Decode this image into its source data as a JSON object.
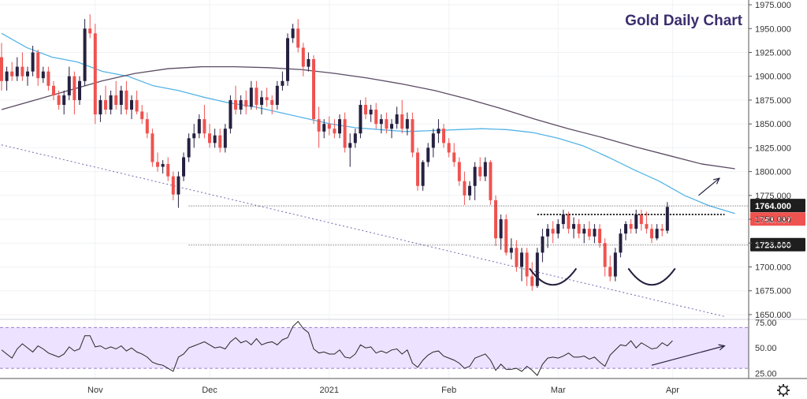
{
  "chart_data": [
    {
      "type": "candlestick",
      "title": "Gold Daily Chart",
      "y_axis": {
        "position": "right",
        "ylim": [
          1645,
          1980
        ],
        "ticks": [
          "1975.000",
          "1950.000",
          "1925.000",
          "1900.000",
          "1875.000",
          "1850.000",
          "1825.000",
          "1800.000",
          "1775.000",
          "1750.000",
          "1725.000",
          "1700.000",
          "1675.000",
          "1650.000"
        ]
      },
      "x_axis": {
        "ticks": [
          {
            "label": "Nov",
            "day": 18
          },
          {
            "label": "Dec",
            "day": 40
          },
          {
            "label": "2021",
            "day": 63
          },
          {
            "label": "Feb",
            "day": 86
          },
          {
            "label": "Mar",
            "day": 107
          },
          {
            "label": "Apr",
            "day": 129
          }
        ]
      },
      "candles": [
        [
          1920,
          1935,
          1885,
          1895
        ],
        [
          1895,
          1910,
          1885,
          1905
        ],
        [
          1905,
          1915,
          1895,
          1900
        ],
        [
          1900,
          1920,
          1895,
          1910
        ],
        [
          1910,
          1925,
          1895,
          1900
        ],
        [
          1900,
          1910,
          1890,
          1905
        ],
        [
          1905,
          1932,
          1900,
          1925
        ],
        [
          1925,
          1928,
          1890,
          1898
        ],
        [
          1898,
          1910,
          1893,
          1905
        ],
        [
          1905,
          1910,
          1885,
          1890
        ],
        [
          1890,
          1895,
          1875,
          1880
        ],
        [
          1880,
          1885,
          1865,
          1870
        ],
        [
          1870,
          1885,
          1860,
          1880
        ],
        [
          1880,
          1910,
          1875,
          1900
        ],
        [
          1900,
          1905,
          1860,
          1875
        ],
        [
          1875,
          1900,
          1870,
          1895
        ],
        [
          1895,
          1960,
          1890,
          1950
        ],
        [
          1950,
          1965,
          1940,
          1945
        ],
        [
          1945,
          1955,
          1850,
          1860
        ],
        [
          1860,
          1880,
          1852,
          1875
        ],
        [
          1875,
          1890,
          1860,
          1865
        ],
        [
          1865,
          1885,
          1860,
          1880
        ],
        [
          1880,
          1895,
          1865,
          1870
        ],
        [
          1870,
          1890,
          1860,
          1885
        ],
        [
          1885,
          1895,
          1860,
          1865
        ],
        [
          1865,
          1880,
          1855,
          1875
        ],
        [
          1875,
          1885,
          1860,
          1863
        ],
        [
          1863,
          1870,
          1850,
          1855
        ],
        [
          1855,
          1862,
          1835,
          1840
        ],
        [
          1840,
          1845,
          1805,
          1810
        ],
        [
          1810,
          1820,
          1800,
          1805
        ],
        [
          1805,
          1812,
          1798,
          1808
        ],
        [
          1808,
          1815,
          1790,
          1795
        ],
        [
          1795,
          1800,
          1770,
          1776
        ],
        [
          1776,
          1800,
          1762,
          1795
        ],
        [
          1795,
          1820,
          1790,
          1815
        ],
        [
          1815,
          1840,
          1810,
          1835
        ],
        [
          1835,
          1850,
          1825,
          1840
        ],
        [
          1840,
          1860,
          1835,
          1855
        ],
        [
          1855,
          1870,
          1835,
          1840
        ],
        [
          1840,
          1850,
          1825,
          1830
        ],
        [
          1830,
          1845,
          1825,
          1838
        ],
        [
          1838,
          1845,
          1820,
          1825
        ],
        [
          1825,
          1850,
          1820,
          1845
        ],
        [
          1845,
          1880,
          1840,
          1875
        ],
        [
          1875,
          1890,
          1860,
          1865
        ],
        [
          1865,
          1880,
          1860,
          1875
        ],
        [
          1875,
          1885,
          1860,
          1868
        ],
        [
          1868,
          1895,
          1865,
          1888
        ],
        [
          1888,
          1895,
          1865,
          1870
        ],
        [
          1870,
          1885,
          1860,
          1878
        ],
        [
          1878,
          1888,
          1868,
          1875
        ],
        [
          1875,
          1880,
          1860,
          1870
        ],
        [
          1870,
          1895,
          1865,
          1890
        ],
        [
          1890,
          1905,
          1885,
          1895
        ],
        [
          1895,
          1945,
          1890,
          1940
        ],
        [
          1940,
          1955,
          1935,
          1950
        ],
        [
          1950,
          1960,
          1925,
          1930
        ],
        [
          1930,
          1935,
          1900,
          1910
        ],
        [
          1910,
          1925,
          1905,
          1918
        ],
        [
          1918,
          1922,
          1850,
          1855
        ],
        [
          1855,
          1868,
          1825,
          1842
        ],
        [
          1842,
          1855,
          1835,
          1850
        ],
        [
          1850,
          1858,
          1838,
          1845
        ],
        [
          1845,
          1855,
          1835,
          1840
        ],
        [
          1840,
          1860,
          1835,
          1855
        ],
        [
          1855,
          1862,
          1820,
          1825
        ],
        [
          1825,
          1840,
          1805,
          1830
        ],
        [
          1830,
          1845,
          1825,
          1840
        ],
        [
          1840,
          1875,
          1835,
          1870
        ],
        [
          1870,
          1878,
          1855,
          1860
        ],
        [
          1860,
          1870,
          1852,
          1865
        ],
        [
          1865,
          1872,
          1845,
          1850
        ],
        [
          1850,
          1860,
          1840,
          1855
        ],
        [
          1855,
          1862,
          1840,
          1845
        ],
        [
          1845,
          1855,
          1835,
          1850
        ],
        [
          1850,
          1868,
          1845,
          1860
        ],
        [
          1860,
          1875,
          1840,
          1845
        ],
        [
          1845,
          1862,
          1838,
          1855
        ],
        [
          1855,
          1862,
          1815,
          1820
        ],
        [
          1820,
          1825,
          1780,
          1785
        ],
        [
          1785,
          1812,
          1780,
          1810
        ],
        [
          1810,
          1830,
          1805,
          1825
        ],
        [
          1825,
          1845,
          1815,
          1840
        ],
        [
          1840,
          1855,
          1830,
          1845
        ],
        [
          1845,
          1850,
          1825,
          1830
        ],
        [
          1830,
          1835,
          1815,
          1820
        ],
        [
          1820,
          1830,
          1805,
          1810
        ],
        [
          1810,
          1815,
          1785,
          1790
        ],
        [
          1790,
          1800,
          1765,
          1775
        ],
        [
          1775,
          1790,
          1770,
          1785
        ],
        [
          1785,
          1810,
          1770,
          1805
        ],
        [
          1805,
          1815,
          1790,
          1795
        ],
        [
          1795,
          1815,
          1790,
          1810
        ],
        [
          1810,
          1812,
          1765,
          1770
        ],
        [
          1770,
          1775,
          1722,
          1730
        ],
        [
          1730,
          1755,
          1718,
          1750
        ],
        [
          1750,
          1755,
          1712,
          1715
        ],
        [
          1715,
          1730,
          1708,
          1720
        ],
        [
          1720,
          1728,
          1695,
          1700
        ],
        [
          1700,
          1720,
          1685,
          1715
        ],
        [
          1715,
          1720,
          1680,
          1690
        ],
        [
          1690,
          1705,
          1675,
          1680
        ],
        [
          1680,
          1720,
          1678,
          1715
        ],
        [
          1715,
          1740,
          1705,
          1732
        ],
        [
          1732,
          1745,
          1720,
          1740
        ],
        [
          1740,
          1748,
          1725,
          1735
        ],
        [
          1735,
          1750,
          1730,
          1745
        ],
        [
          1745,
          1760,
          1740,
          1755
        ],
        [
          1755,
          1758,
          1735,
          1740
        ],
        [
          1740,
          1752,
          1730,
          1745
        ],
        [
          1745,
          1750,
          1730,
          1735
        ],
        [
          1735,
          1745,
          1725,
          1740
        ],
        [
          1740,
          1748,
          1728,
          1732
        ],
        [
          1732,
          1745,
          1725,
          1740
        ],
        [
          1740,
          1745,
          1720,
          1725
        ],
        [
          1725,
          1730,
          1690,
          1700
        ],
        [
          1700,
          1712,
          1685,
          1690
        ],
        [
          1690,
          1720,
          1685,
          1715
        ],
        [
          1715,
          1740,
          1710,
          1735
        ],
        [
          1735,
          1748,
          1728,
          1745
        ],
        [
          1745,
          1750,
          1735,
          1740
        ],
        [
          1740,
          1760,
          1735,
          1755
        ],
        [
          1755,
          1760,
          1738,
          1745
        ],
        [
          1745,
          1758,
          1735,
          1740
        ],
        [
          1740,
          1745,
          1725,
          1730
        ],
        [
          1730,
          1745,
          1728,
          1740
        ],
        [
          1740,
          1745,
          1732,
          1738
        ],
        [
          1738,
          1768,
          1735,
          1763
        ]
      ],
      "series": [
        {
          "type": "line",
          "color": "#55b4e6",
          "start_day": 0,
          "values": [
            1945,
            1930,
            1920,
            1915,
            1905,
            1900,
            1890,
            1885,
            1878,
            1872,
            1868,
            1862,
            1856,
            1850,
            1846,
            1844,
            1842,
            1843,
            1844,
            1845,
            1844,
            1841,
            1835,
            1827,
            1815,
            1802,
            1790,
            1775,
            1764,
            1756
          ]
        },
        {
          "type": "line",
          "color": "#5b4b64",
          "start_day": 0,
          "values": [
            1865,
            1875,
            1885,
            1895,
            1903,
            1908,
            1910,
            1910,
            1909,
            1907,
            1903,
            1898,
            1892,
            1885,
            1876,
            1866,
            1855,
            1845,
            1836,
            1826,
            1817,
            1808,
            1803
          ]
        },
        {
          "type": "line",
          "color": "#7267b0",
          "style": "dotted",
          "x_start_day": 0,
          "y_start": 1828,
          "x_end_day": 139,
          "y_end": 1648
        }
      ],
      "levels": [
        {
          "value": 1764.0,
          "label": "1764.000",
          "tag_bg": "#1e1e1e",
          "tag_fg": "#ffffff",
          "line": "dotted"
        },
        {
          "value": 1763.037,
          "label": "1763.037",
          "tag_bg": "#ef5350",
          "tag_fg": "#ffffff",
          "line": "none"
        },
        {
          "value": 1755,
          "label": "",
          "line": "dense-dotted"
        },
        {
          "value": 1723.0,
          "label": "1723.000",
          "tag_bg": "#1e1e1e",
          "tag_fg": "#ffffff",
          "line": "dotted"
        }
      ],
      "annotations": [
        {
          "type": "arc",
          "center_day": 106,
          "center_value": 1693,
          "half_width_days": 4.5,
          "depth": 22
        },
        {
          "type": "arc",
          "center_day": 125,
          "center_value": 1693,
          "half_width_days": 4.5,
          "depth": 22
        },
        {
          "type": "arrow",
          "from_day": 134,
          "from_value": 1775,
          "to_day": 138,
          "to_value": 1793
        }
      ],
      "colors": {
        "up": "#262040",
        "down": "#ef5350"
      }
    },
    {
      "type": "line",
      "title": "",
      "name": "rsi",
      "y_axis": {
        "position": "right",
        "ylim": [
          20,
          78
        ],
        "ticks": [
          "75.00",
          "50.00",
          "25.00"
        ]
      },
      "band": {
        "upper": 70,
        "lower": 30,
        "fill": "#ede2ff"
      },
      "values": [
        48,
        44,
        40,
        49,
        54,
        50,
        46,
        52,
        49,
        45,
        43,
        41,
        44,
        51,
        47,
        49,
        62,
        62,
        51,
        52,
        49,
        51,
        49,
        52,
        47,
        50,
        46,
        44,
        41,
        36,
        34,
        33,
        30,
        27,
        41,
        44,
        50,
        52,
        54,
        56,
        53,
        50,
        51,
        49,
        56,
        60,
        55,
        57,
        53,
        59,
        53,
        55,
        56,
        53,
        58,
        60,
        71,
        76,
        69,
        65,
        49,
        45,
        46,
        44,
        44,
        48,
        41,
        40,
        44,
        53,
        50,
        51,
        45,
        47,
        45,
        48,
        49,
        44,
        48,
        35,
        31,
        38,
        43,
        46,
        47,
        42,
        40,
        38,
        35,
        30,
        32,
        40,
        42,
        44,
        38,
        28,
        34,
        29,
        29,
        30,
        27,
        32,
        28,
        23,
        34,
        40,
        41,
        40,
        42,
        45,
        41,
        41,
        42,
        39,
        41,
        36,
        32,
        43,
        48,
        53,
        52,
        57,
        50,
        55,
        52,
        49,
        50,
        55,
        52,
        57
      ],
      "line_color": "#262626",
      "annotations": [
        {
          "type": "arrow",
          "from_day": 125,
          "from_value": 33,
          "to_day": 139,
          "to_value": 52
        }
      ]
    }
  ],
  "footer": {
    "settings_icon": "gear-icon"
  }
}
